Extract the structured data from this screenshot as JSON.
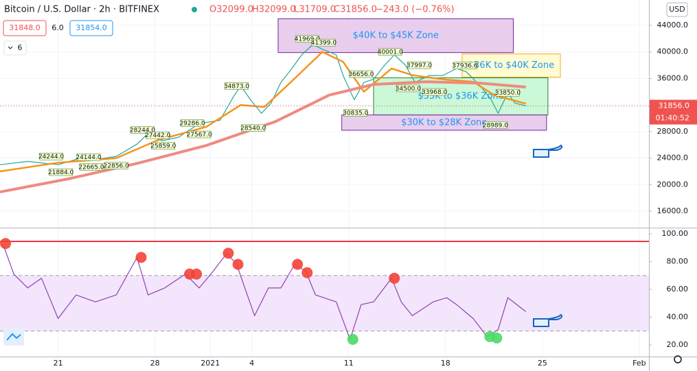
{
  "header": {
    "symbol": "Bitcoin / U.S. Dollar · 2h · BITFINEX",
    "open": "O32099.0",
    "high": "H32099.0",
    "low": "L31709.0",
    "close": "C31856.0",
    "change": "−243.0 (−0.76%)",
    "sell": "31848.0",
    "spread": "6.0",
    "buy": "31854.0",
    "indicators": "6",
    "currency": "USD"
  },
  "chart_data": [
    {
      "type": "line",
      "xlim": [
        16.8,
        63.7
      ],
      "ylim": [
        13520,
        47820
      ],
      "yticks": [
        {
          "value": 16000,
          "label": "16000.0"
        },
        {
          "value": 20000,
          "label": "20000.0"
        },
        {
          "value": 24000,
          "label": "24000.0"
        },
        {
          "value": 28000,
          "label": "28000.0"
        },
        {
          "value": 32000,
          "label": "32000.0"
        },
        {
          "value": 36000,
          "label": "36000.0"
        },
        {
          "value": 40000,
          "label": "40000.0"
        },
        {
          "value": 44000,
          "label": "44000.0"
        }
      ],
      "grid": true,
      "series": [
        {
          "color": "#26a69a",
          "width": 1.2,
          "x": [
            16.8,
            18.8,
            21.0,
            22.3,
            23.7,
            25.2,
            26.7,
            27.5,
            28.5,
            29.7,
            31.2,
            32.7,
            33.7,
            34.2,
            34.9,
            35.7,
            36.4,
            37.1,
            37.9,
            38.6,
            39.4,
            40.1,
            41.1,
            41.6,
            42.4,
            43.1,
            43.8,
            44.6,
            45.3,
            46.1,
            46.8,
            47.8,
            48.8,
            49.8,
            50.5,
            51.5,
            52.3,
            52.8,
            53.5,
            54.0,
            54.8
          ],
          "values": [
            23000,
            23500,
            23000,
            23800,
            23800,
            24250,
            26100,
            27700,
            26600,
            27150,
            29200,
            29700,
            33350,
            34900,
            32800,
            30750,
            32300,
            35400,
            37500,
            39550,
            41100,
            40400,
            39550,
            36450,
            32800,
            35400,
            35900,
            38000,
            39550,
            38000,
            35400,
            36450,
            36450,
            37500,
            37000,
            34900,
            32800,
            30750,
            33850,
            32300,
            31856
          ]
        },
        {
          "color": "#f7931a",
          "width": 2.5,
          "x": [
            16.8,
            21.0,
            25.2,
            28.2,
            31.7,
            34.2,
            35.9,
            38.1,
            40.1,
            41.6,
            43.1,
            45.1,
            46.6,
            49.1,
            51.0,
            52.5,
            54.8
          ],
          "values": [
            22000,
            23300,
            24000,
            26700,
            28700,
            32000,
            31700,
            36000,
            40000,
            38500,
            34000,
            37500,
            36500,
            35800,
            35500,
            33500,
            32200
          ]
        },
        {
          "color": "#ef8a80",
          "width": 4,
          "x": [
            16.8,
            21.8,
            26.7,
            31.7,
            36.7,
            40.6,
            43.8,
            47.6,
            51.5,
            54.8
          ],
          "values": [
            18900,
            20900,
            23200,
            25900,
            29500,
            33500,
            35100,
            35500,
            35300,
            34700
          ]
        }
      ],
      "zones": [
        {
          "label": "$40K to $45K Zone",
          "color": "#e1bee7",
          "border": "#7b1fa2",
          "x": [
            36.9,
            53.9
          ],
          "y": [
            39900,
            45000
          ]
        },
        {
          "label": "$36K to $40K Zone",
          "color": "#fff9c4",
          "border": "#f9a825",
          "x": [
            50.2,
            57.3
          ],
          "y": [
            36200,
            39700
          ]
        },
        {
          "label": "$33K to $36K Zone",
          "color": "#b9f6ca",
          "border": "#2e7d32",
          "x": [
            43.8,
            56.4
          ],
          "y": [
            30500,
            36100
          ]
        },
        {
          "label": "$30K to $28K Zone",
          "color": "#e1bee7",
          "border": "#7b1fa2",
          "x": [
            41.5,
            56.3
          ],
          "y": [
            28200,
            30500
          ]
        }
      ],
      "pivots": {
        "x": [
          39.0,
          40.2,
          45.0,
          42.9,
          47.1,
          50.4,
          33.9,
          30.7,
          27.1,
          28.2,
          31.2,
          35.1,
          42.5,
          46.3,
          48.2,
          53.5,
          52.6,
          23.2,
          20.5,
          21.2,
          23.4,
          25.2,
          28.6
        ],
        "values": [
          41969,
          41399,
          40001,
          36656,
          37997,
          37936.6,
          34873,
          29286,
          28244,
          27442,
          27567,
          28540,
          30835,
          34500,
          33968,
          33850,
          28989,
          24144,
          24244,
          21884,
          22665,
          22856,
          25859
        ],
        "value_labels": [
          "41969.0",
          "41399.0",
          "40001.0",
          "36656.0",
          "37997.0",
          "37936.6",
          "34873.0",
          "29286.0",
          "28244.0",
          "27442.0",
          "27567.0",
          "28540.0",
          "30835.0",
          "34500.0",
          "33968.0",
          "33850.0",
          "28989.0",
          "24144.0",
          "24244.0",
          "21884.0",
          "22665.0",
          "22856.0",
          "25859.0"
        ]
      },
      "last": {
        "value": 31856,
        "label": "31856.0",
        "countdown": "01:40:52",
        "color": "#ef5350"
      }
    },
    {
      "type": "line",
      "xlim": [
        16.8,
        63.7
      ],
      "ylim": [
        11.6,
        104.4
      ],
      "yticks": [
        {
          "value": 20,
          "label": "20.00"
        },
        {
          "value": 40,
          "label": "40.00"
        },
        {
          "value": 60,
          "label": "60.00"
        },
        {
          "value": 80,
          "label": "80.00"
        },
        {
          "value": 100,
          "label": "100.00"
        }
      ],
      "xticks": [
        21,
        28,
        {
          "value": 32,
          "label": "2021"
        },
        {
          "value": 35,
          "label": "4"
        },
        {
          "value": 42,
          "label": "11"
        },
        {
          "value": 49,
          "label": "18"
        },
        {
          "value": 56,
          "label": "25"
        },
        {
          "value": 63,
          "label": "Feb"
        }
      ],
      "band": [
        30,
        70
      ],
      "band_color": "#f3e5fc",
      "hline": {
        "value": 94.5,
        "color": "#f23645"
      },
      "series": [
        {
          "color": "#8e44ad",
          "width": 1.2,
          "x": [
            17.0,
            17.8,
            18.8,
            19.8,
            21.0,
            22.3,
            23.7,
            25.2,
            26.7,
            27.5,
            28.7,
            30.2,
            31.2,
            32.2,
            33.2,
            33.9,
            35.2,
            36.2,
            37.1,
            38.1,
            38.9,
            39.6,
            41.1,
            42.1,
            42.9,
            43.8,
            45.1,
            45.8,
            46.6,
            48.1,
            49.1,
            49.8,
            51.0,
            52.0,
            52.8,
            53.5,
            54.8
          ],
          "values": [
            93,
            71,
            61,
            68,
            39,
            56,
            51,
            56,
            83,
            56,
            61,
            71,
            61,
            73,
            86,
            78,
            41,
            61,
            61,
            78,
            73,
            56,
            51,
            24,
            49,
            51,
            68,
            51,
            41,
            51,
            54,
            49,
            39,
            26,
            31,
            54,
            44
          ]
        }
      ],
      "markers": [
        {
          "color": "#f44336",
          "x": [
            17.2,
            27.0,
            30.5,
            31.0,
            33.3,
            34.0,
            38.3,
            39.0,
            45.3
          ],
          "values": [
            93,
            83,
            71,
            71,
            86,
            78,
            78,
            72,
            68
          ]
        },
        {
          "color": "#4cd964",
          "x": [
            42.3,
            52.2,
            52.7
          ],
          "values": [
            24,
            26,
            25
          ]
        }
      ]
    }
  ]
}
